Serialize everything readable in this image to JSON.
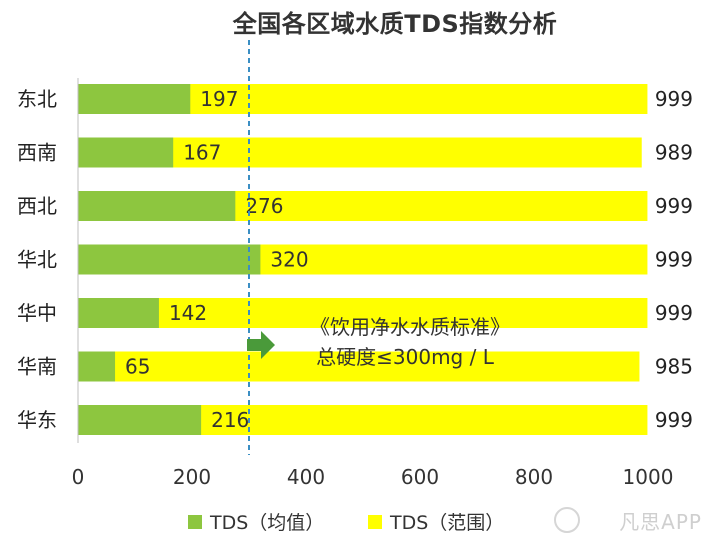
{
  "colors": {
    "avg": "#8DC63F",
    "range": "#FFFF00",
    "reference_line": "#3B8FC4",
    "arrow": "#4A9A3A"
  },
  "watermark": "凡思APP",
  "chart_data": {
    "type": "bar",
    "orientation": "horizontal",
    "title": "全国各区域水质TDS指数分析",
    "categories": [
      "东北",
      "西南",
      "西北",
      "华北",
      "华中",
      "华南",
      "华东"
    ],
    "series": [
      {
        "name": "TDS（均值）",
        "values": [
          197,
          167,
          276,
          320,
          142,
          65,
          216
        ]
      },
      {
        "name": "TDS（范围）",
        "values": [
          999,
          989,
          999,
          999,
          999,
          985,
          999
        ]
      }
    ],
    "xlim": [
      0,
      1000
    ],
    "xticks": [
      0,
      200,
      400,
      600,
      800,
      1000
    ],
    "grid": false,
    "legend_position": "bottom",
    "reference_line": {
      "value": 300,
      "label_lines": [
        "《饮用净水水质标准》",
        "总硬度≤300mg / L"
      ]
    }
  }
}
